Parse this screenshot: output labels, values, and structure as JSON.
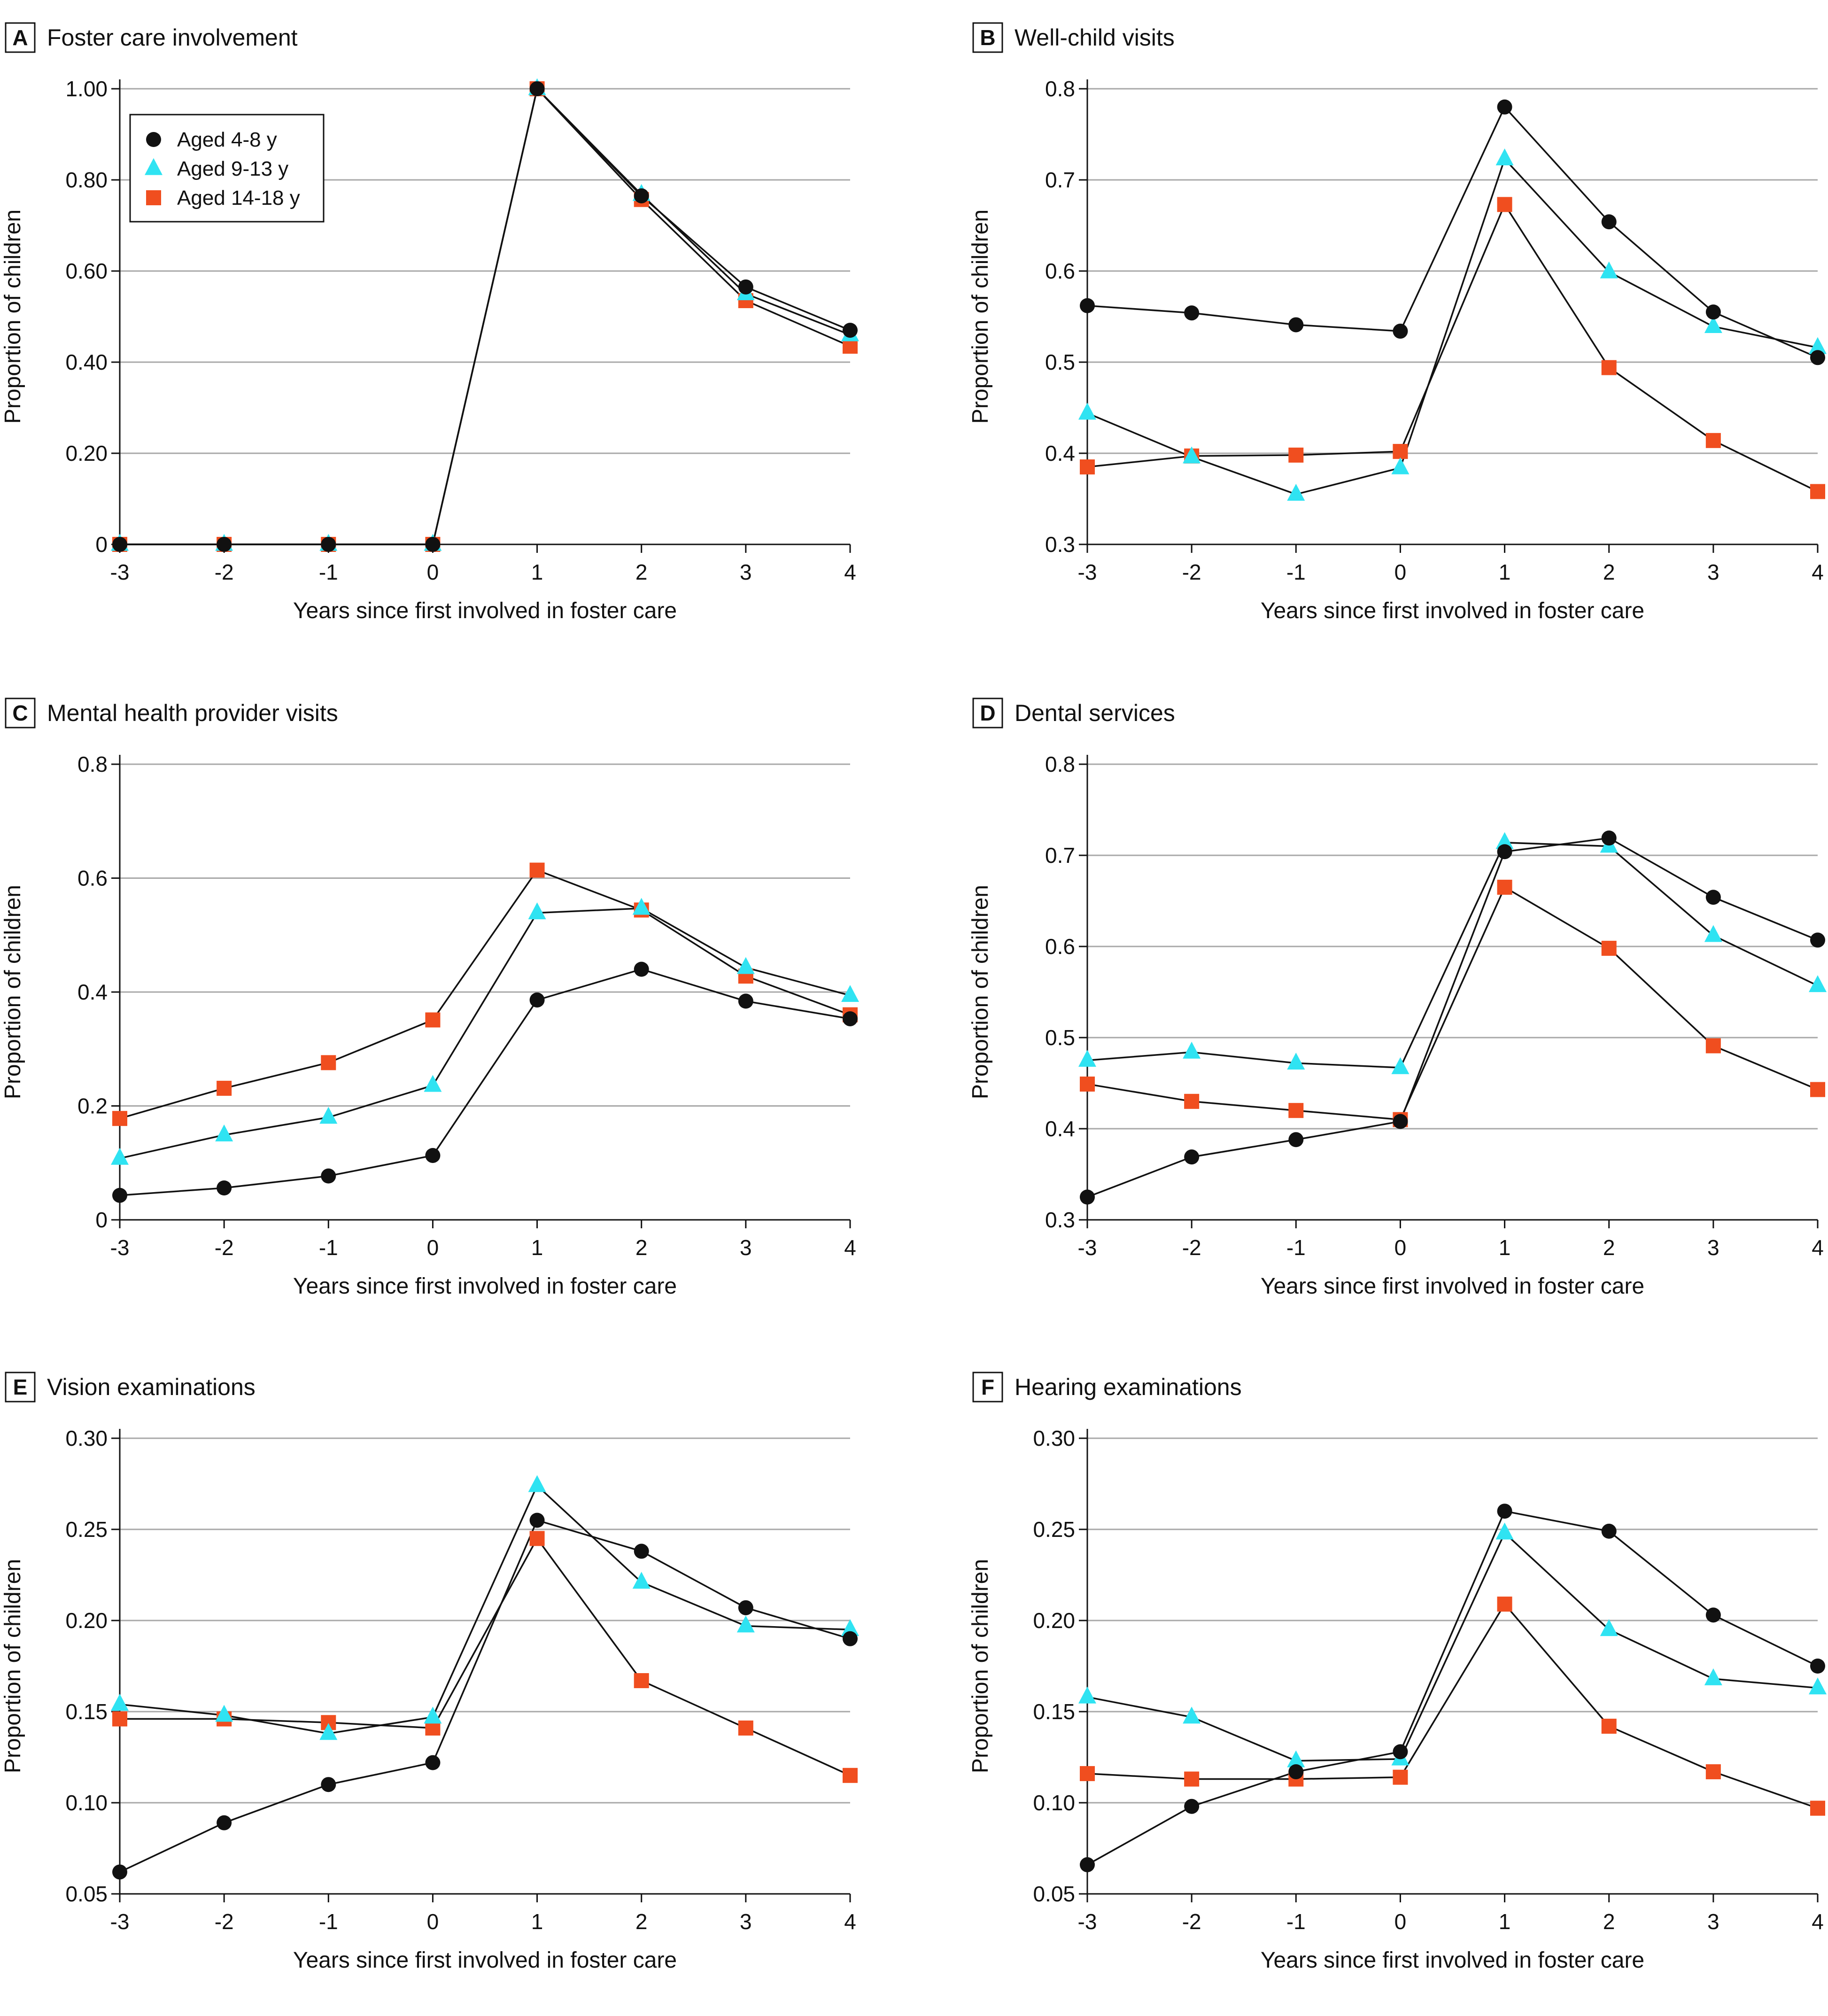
{
  "figure": {
    "legend": [
      {
        "label": "Aged 4-8 y",
        "marker": "circle",
        "color": "#111111"
      },
      {
        "label": "Aged 9-13 y",
        "marker": "triangle",
        "color": "#2fe3f2"
      },
      {
        "label": "Aged 14-18 y",
        "marker": "square",
        "color": "#f04e1f"
      }
    ]
  },
  "chart_data": [
    {
      "panel": "A",
      "type": "line",
      "title": "Foster care involvement",
      "xlabel": "Years since first involved in foster care",
      "ylabel": "Proportion of children",
      "x": [
        -3,
        -2,
        -1,
        0,
        1,
        2,
        3,
        4
      ],
      "xticks": [
        "-3",
        "-2",
        "-1",
        "0",
        "1",
        "2",
        "3",
        "4"
      ],
      "ylim": [
        0,
        1.0
      ],
      "yticks": [
        {
          "v": 0,
          "label": "0"
        },
        {
          "v": 0.2,
          "label": "0.20"
        },
        {
          "v": 0.4,
          "label": "0.40"
        },
        {
          "v": 0.6,
          "label": "0.60"
        },
        {
          "v": 0.8,
          "label": "0.80"
        },
        {
          "v": 1.0,
          "label": "1.00"
        }
      ],
      "grid": true,
      "legend_position": "top-left",
      "series": [
        {
          "name": "Aged 4-8 y",
          "values": [
            0,
            0,
            0,
            0,
            1.0,
            0.765,
            0.565,
            0.47
          ]
        },
        {
          "name": "Aged 9-13 y",
          "values": [
            0,
            0,
            0,
            0,
            1.0,
            0.768,
            0.55,
            0.46
          ]
        },
        {
          "name": "Aged 14-18 y",
          "values": [
            0,
            0,
            0,
            0,
            1.0,
            0.757,
            0.535,
            0.435
          ]
        }
      ]
    },
    {
      "panel": "B",
      "type": "line",
      "title": "Well-child visits",
      "xlabel": "Years since first involved in foster care",
      "ylabel": "Proportion of children",
      "x": [
        -3,
        -2,
        -1,
        0,
        1,
        2,
        3,
        4
      ],
      "xticks": [
        "-3",
        "-2",
        "-1",
        "0",
        "1",
        "2",
        "3",
        "4"
      ],
      "ylim": [
        0.3,
        0.8
      ],
      "yticks": [
        {
          "v": 0.3,
          "label": "0.3"
        },
        {
          "v": 0.4,
          "label": "0.4"
        },
        {
          "v": 0.5,
          "label": "0.5"
        },
        {
          "v": 0.6,
          "label": "0.6"
        },
        {
          "v": 0.7,
          "label": "0.7"
        },
        {
          "v": 0.8,
          "label": "0.8"
        }
      ],
      "grid": true,
      "series": [
        {
          "name": "Aged 4-8 y",
          "values": [
            0.562,
            0.554,
            0.541,
            0.534,
            0.78,
            0.654,
            0.555,
            0.505
          ]
        },
        {
          "name": "Aged 9-13 y",
          "values": [
            0.444,
            0.396,
            0.355,
            0.384,
            0.723,
            0.599,
            0.539,
            0.516
          ]
        },
        {
          "name": "Aged 14-18 y",
          "values": [
            0.385,
            0.397,
            0.398,
            0.402,
            0.673,
            0.494,
            0.414,
            0.358
          ]
        }
      ]
    },
    {
      "panel": "C",
      "type": "line",
      "title": "Mental health provider visits",
      "xlabel": "Years since first involved in foster care",
      "ylabel": "Proportion of children",
      "x": [
        -3,
        -2,
        -1,
        0,
        1,
        2,
        3,
        4
      ],
      "xticks": [
        "-3",
        "-2",
        "-1",
        "0",
        "1",
        "2",
        "3",
        "4"
      ],
      "ylim": [
        0,
        0.8
      ],
      "yticks": [
        {
          "v": 0,
          "label": "0"
        },
        {
          "v": 0.2,
          "label": "0.2"
        },
        {
          "v": 0.4,
          "label": "0.4"
        },
        {
          "v": 0.6,
          "label": "0.6"
        },
        {
          "v": 0.8,
          "label": "0.8"
        }
      ],
      "grid": true,
      "series": [
        {
          "name": "Aged 4-8 y",
          "values": [
            0.043,
            0.056,
            0.077,
            0.113,
            0.386,
            0.44,
            0.384,
            0.353
          ]
        },
        {
          "name": "Aged 9-13 y",
          "values": [
            0.108,
            0.149,
            0.18,
            0.236,
            0.539,
            0.547,
            0.443,
            0.394
          ]
        },
        {
          "name": "Aged 14-18 y",
          "values": [
            0.178,
            0.231,
            0.276,
            0.351,
            0.614,
            0.544,
            0.428,
            0.36
          ]
        }
      ]
    },
    {
      "panel": "D",
      "type": "line",
      "title": "Dental services",
      "xlabel": "Years since first involved in foster care",
      "ylabel": "Proportion of children",
      "x": [
        -3,
        -2,
        -1,
        0,
        1,
        2,
        3,
        4
      ],
      "xticks": [
        "-3",
        "-2",
        "-1",
        "0",
        "1",
        "2",
        "3",
        "4"
      ],
      "ylim": [
        0.3,
        0.8
      ],
      "yticks": [
        {
          "v": 0.3,
          "label": "0.3"
        },
        {
          "v": 0.4,
          "label": "0.4"
        },
        {
          "v": 0.5,
          "label": "0.5"
        },
        {
          "v": 0.6,
          "label": "0.6"
        },
        {
          "v": 0.7,
          "label": "0.7"
        },
        {
          "v": 0.8,
          "label": "0.8"
        }
      ],
      "grid": true,
      "series": [
        {
          "name": "Aged 4-8 y",
          "values": [
            0.325,
            0.369,
            0.388,
            0.408,
            0.704,
            0.719,
            0.654,
            0.607
          ]
        },
        {
          "name": "Aged 9-13 y",
          "values": [
            0.475,
            0.484,
            0.472,
            0.467,
            0.714,
            0.71,
            0.612,
            0.557
          ]
        },
        {
          "name": "Aged 14-18 y",
          "values": [
            0.449,
            0.43,
            0.42,
            0.41,
            0.665,
            0.598,
            0.491,
            0.443
          ]
        }
      ]
    },
    {
      "panel": "E",
      "type": "line",
      "title": "Vision examinations",
      "xlabel": "Years since first involved in foster care",
      "ylabel": "Proportion of children",
      "x": [
        -3,
        -2,
        -1,
        0,
        1,
        2,
        3,
        4
      ],
      "xticks": [
        "-3",
        "-2",
        "-1",
        "0",
        "1",
        "2",
        "3",
        "4"
      ],
      "ylim": [
        0.05,
        0.3
      ],
      "yticks": [
        {
          "v": 0.05,
          "label": "0.05"
        },
        {
          "v": 0.1,
          "label": "0.10"
        },
        {
          "v": 0.15,
          "label": "0.15"
        },
        {
          "v": 0.2,
          "label": "0.20"
        },
        {
          "v": 0.25,
          "label": "0.25"
        },
        {
          "v": 0.3,
          "label": "0.30"
        }
      ],
      "grid": true,
      "series": [
        {
          "name": "Aged 4-8 y",
          "values": [
            0.062,
            0.089,
            0.11,
            0.122,
            0.255,
            0.238,
            0.207,
            0.19
          ]
        },
        {
          "name": "Aged 9-13 y",
          "values": [
            0.154,
            0.148,
            0.138,
            0.147,
            0.274,
            0.221,
            0.197,
            0.195
          ]
        },
        {
          "name": "Aged 14-18 y",
          "values": [
            0.146,
            0.146,
            0.144,
            0.141,
            0.245,
            0.167,
            0.141,
            0.115
          ]
        }
      ]
    },
    {
      "panel": "F",
      "type": "line",
      "title": "Hearing examinations",
      "xlabel": "Years since first involved in foster care",
      "ylabel": "Proportion of children",
      "x": [
        -3,
        -2,
        -1,
        0,
        1,
        2,
        3,
        4
      ],
      "xticks": [
        "-3",
        "-2",
        "-1",
        "0",
        "1",
        "2",
        "3",
        "4"
      ],
      "ylim": [
        0.05,
        0.3
      ],
      "yticks": [
        {
          "v": 0.05,
          "label": "0.05"
        },
        {
          "v": 0.1,
          "label": "0.10"
        },
        {
          "v": 0.15,
          "label": "0.15"
        },
        {
          "v": 0.2,
          "label": "0.20"
        },
        {
          "v": 0.25,
          "label": "0.25"
        },
        {
          "v": 0.3,
          "label": "0.30"
        }
      ],
      "grid": true,
      "series": [
        {
          "name": "Aged 4-8 y",
          "values": [
            0.066,
            0.098,
            0.117,
            0.128,
            0.26,
            0.249,
            0.203,
            0.175
          ]
        },
        {
          "name": "Aged 9-13 y",
          "values": [
            0.158,
            0.147,
            0.123,
            0.124,
            0.248,
            0.195,
            0.168,
            0.163
          ]
        },
        {
          "name": "Aged 14-18 y",
          "values": [
            0.116,
            0.113,
            0.113,
            0.114,
            0.209,
            0.142,
            0.117,
            0.097
          ]
        }
      ]
    }
  ]
}
